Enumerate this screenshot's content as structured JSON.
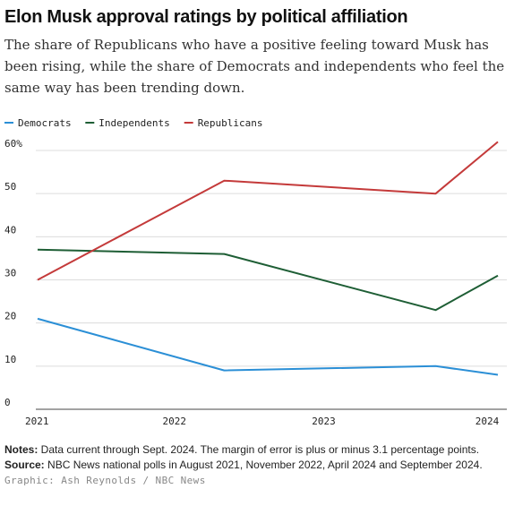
{
  "chart_data": {
    "type": "line",
    "title": "Elon Musk approval ratings by political affiliation",
    "subtitle": "The share of Republicans who have a positive feeling toward Musk has been rising, while the share of Democrats and independents who feel the same way has been trending down.",
    "x": [
      "2021-08",
      "2022-11",
      "2024-04",
      "2024-09"
    ],
    "x_ticks": [
      "2021",
      "2022",
      "2023",
      "2024"
    ],
    "y_ticks": [
      "60%",
      "50",
      "40",
      "30",
      "20",
      "10",
      "0"
    ],
    "ylim": [
      0,
      60
    ],
    "legend_position": "top-left",
    "grid": true,
    "series": [
      {
        "name": "Democrats",
        "color": "#2b8fd6",
        "values": [
          21,
          9,
          10,
          8
        ]
      },
      {
        "name": "Independents",
        "color": "#1e5e35",
        "values": [
          37,
          36,
          23,
          31
        ]
      },
      {
        "name": "Republicans",
        "color": "#c43a3a",
        "values": [
          30,
          53,
          50,
          62
        ]
      }
    ]
  },
  "footer": {
    "notes_label": "Notes:",
    "notes_text": " Data current through Sept. 2024. The margin of error is plus or minus 3.1 percentage points.",
    "source_label": "Source:",
    "source_text": " NBC News national polls in August 2021, November 2022, April 2024 and September 2024.",
    "credit": "Graphic: Ash Reynolds / NBC News"
  }
}
